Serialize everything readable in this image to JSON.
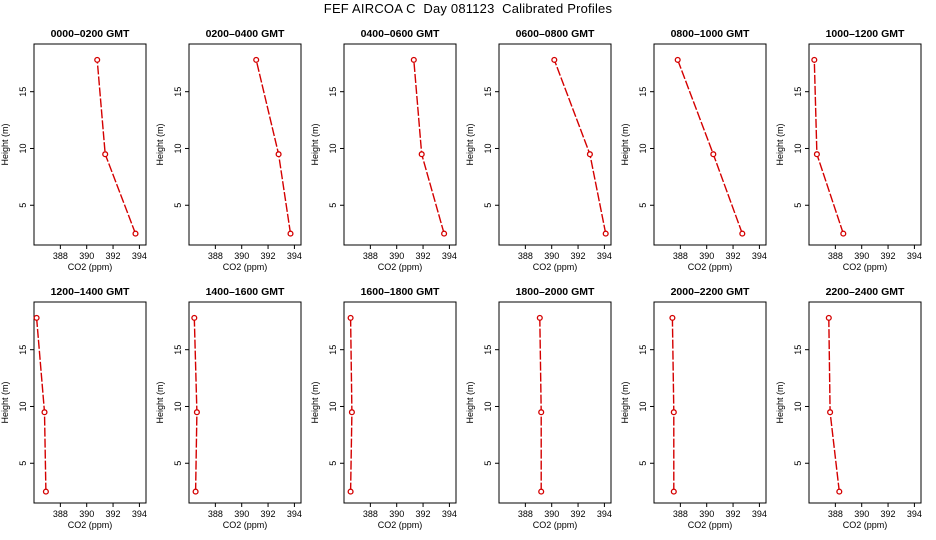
{
  "page": {
    "title": "FEF AIRCOA C  Day 081123  Calibrated Profiles"
  },
  "colors": {
    "series": "#d40000",
    "axis": "#000000"
  },
  "chart_data": [
    {
      "type": "line",
      "title": "0000–0200 GMT",
      "xlabel": "CO2 (ppm)",
      "ylabel": "Height (m)",
      "xlim": [
        386.0,
        394.5
      ],
      "ylim": [
        1.5,
        19.2
      ],
      "xticks": [
        388,
        390,
        392,
        394
      ],
      "yticks": [
        5,
        10,
        15
      ],
      "x": [
        393.7,
        391.4,
        390.8
      ],
      "y": [
        2.5,
        9.5,
        17.8
      ]
    },
    {
      "type": "line",
      "title": "0200–0400 GMT",
      "xlabel": "CO2 (ppm)",
      "ylabel": "Height (m)",
      "xlim": [
        386.0,
        394.5
      ],
      "ylim": [
        1.5,
        19.2
      ],
      "xticks": [
        388,
        390,
        392,
        394
      ],
      "yticks": [
        5,
        10,
        15
      ],
      "x": [
        393.7,
        392.8,
        391.1
      ],
      "y": [
        2.5,
        9.5,
        17.8
      ]
    },
    {
      "type": "line",
      "title": "0400–0600 GMT",
      "xlabel": "CO2 (ppm)",
      "ylabel": "Height (m)",
      "xlim": [
        386.0,
        394.5
      ],
      "ylim": [
        1.5,
        19.2
      ],
      "xticks": [
        388,
        390,
        392,
        394
      ],
      "yticks": [
        5,
        10,
        15
      ],
      "x": [
        393.6,
        391.9,
        391.3
      ],
      "y": [
        2.5,
        9.5,
        17.8
      ]
    },
    {
      "type": "line",
      "title": "0600–0800 GMT",
      "xlabel": "CO2 (ppm)",
      "ylabel": "Height (m)",
      "xlim": [
        386.0,
        394.5
      ],
      "ylim": [
        1.5,
        19.2
      ],
      "xticks": [
        388,
        390,
        392,
        394
      ],
      "yticks": [
        5,
        10,
        15
      ],
      "x": [
        394.1,
        392.9,
        390.2
      ],
      "y": [
        2.5,
        9.5,
        17.8
      ]
    },
    {
      "type": "line",
      "title": "0800–1000 GMT",
      "xlabel": "CO2 (ppm)",
      "ylabel": "Height (m)",
      "xlim": [
        386.0,
        394.5
      ],
      "ylim": [
        1.5,
        19.2
      ],
      "xticks": [
        388,
        390,
        392,
        394
      ],
      "yticks": [
        5,
        10,
        15
      ],
      "x": [
        392.7,
        390.5,
        387.8
      ],
      "y": [
        2.5,
        9.5,
        17.8
      ]
    },
    {
      "type": "line",
      "title": "1000–1200 GMT",
      "xlabel": "CO2 (ppm)",
      "ylabel": "Height (m)",
      "xlim": [
        386.0,
        394.5
      ],
      "ylim": [
        1.5,
        19.2
      ],
      "xticks": [
        388,
        390,
        392,
        394
      ],
      "yticks": [
        5,
        10,
        15
      ],
      "x": [
        388.6,
        386.6,
        386.4
      ],
      "y": [
        2.5,
        9.5,
        17.8
      ]
    },
    {
      "type": "line",
      "title": "1200–1400 GMT",
      "xlabel": "CO2 (ppm)",
      "ylabel": "Height (m)",
      "xlim": [
        386.0,
        394.5
      ],
      "ylim": [
        1.5,
        19.2
      ],
      "xticks": [
        388,
        390,
        392,
        394
      ],
      "yticks": [
        5,
        10,
        15
      ],
      "x": [
        386.9,
        386.8,
        386.2
      ],
      "y": [
        2.5,
        9.5,
        17.8
      ]
    },
    {
      "type": "line",
      "title": "1400–1600 GMT",
      "xlabel": "CO2 (ppm)",
      "ylabel": "Height (m)",
      "xlim": [
        386.0,
        394.5
      ],
      "ylim": [
        1.5,
        19.2
      ],
      "xticks": [
        388,
        390,
        392,
        394
      ],
      "yticks": [
        5,
        10,
        15
      ],
      "x": [
        386.5,
        386.6,
        386.4
      ],
      "y": [
        2.5,
        9.5,
        17.8
      ]
    },
    {
      "type": "line",
      "title": "1600–1800 GMT",
      "xlabel": "CO2 (ppm)",
      "ylabel": "Height (m)",
      "xlim": [
        386.0,
        394.5
      ],
      "ylim": [
        1.5,
        19.2
      ],
      "xticks": [
        388,
        390,
        392,
        394
      ],
      "yticks": [
        5,
        10,
        15
      ],
      "x": [
        386.5,
        386.6,
        386.5
      ],
      "y": [
        2.5,
        9.5,
        17.8
      ]
    },
    {
      "type": "line",
      "title": "1800–2000 GMT",
      "xlabel": "CO2 (ppm)",
      "ylabel": "Height (m)",
      "xlim": [
        386.0,
        394.5
      ],
      "ylim": [
        1.5,
        19.2
      ],
      "xticks": [
        388,
        390,
        392,
        394
      ],
      "yticks": [
        5,
        10,
        15
      ],
      "x": [
        389.2,
        389.2,
        389.1
      ],
      "y": [
        2.5,
        9.5,
        17.8
      ]
    },
    {
      "type": "line",
      "title": "2000–2200 GMT",
      "xlabel": "CO2 (ppm)",
      "ylabel": "Height (m)",
      "xlim": [
        386.0,
        394.5
      ],
      "ylim": [
        1.5,
        19.2
      ],
      "xticks": [
        388,
        390,
        392,
        394
      ],
      "yticks": [
        5,
        10,
        15
      ],
      "x": [
        387.5,
        387.5,
        387.4
      ],
      "y": [
        2.5,
        9.5,
        17.8
      ]
    },
    {
      "type": "line",
      "title": "2200–2400 GMT",
      "xlabel": "CO2 (ppm)",
      "ylabel": "Height (m)",
      "xlim": [
        386.0,
        394.5
      ],
      "ylim": [
        1.5,
        19.2
      ],
      "xticks": [
        388,
        390,
        392,
        394
      ],
      "yticks": [
        5,
        10,
        15
      ],
      "x": [
        388.3,
        387.6,
        387.5
      ],
      "y": [
        2.5,
        9.5,
        17.8
      ]
    }
  ]
}
